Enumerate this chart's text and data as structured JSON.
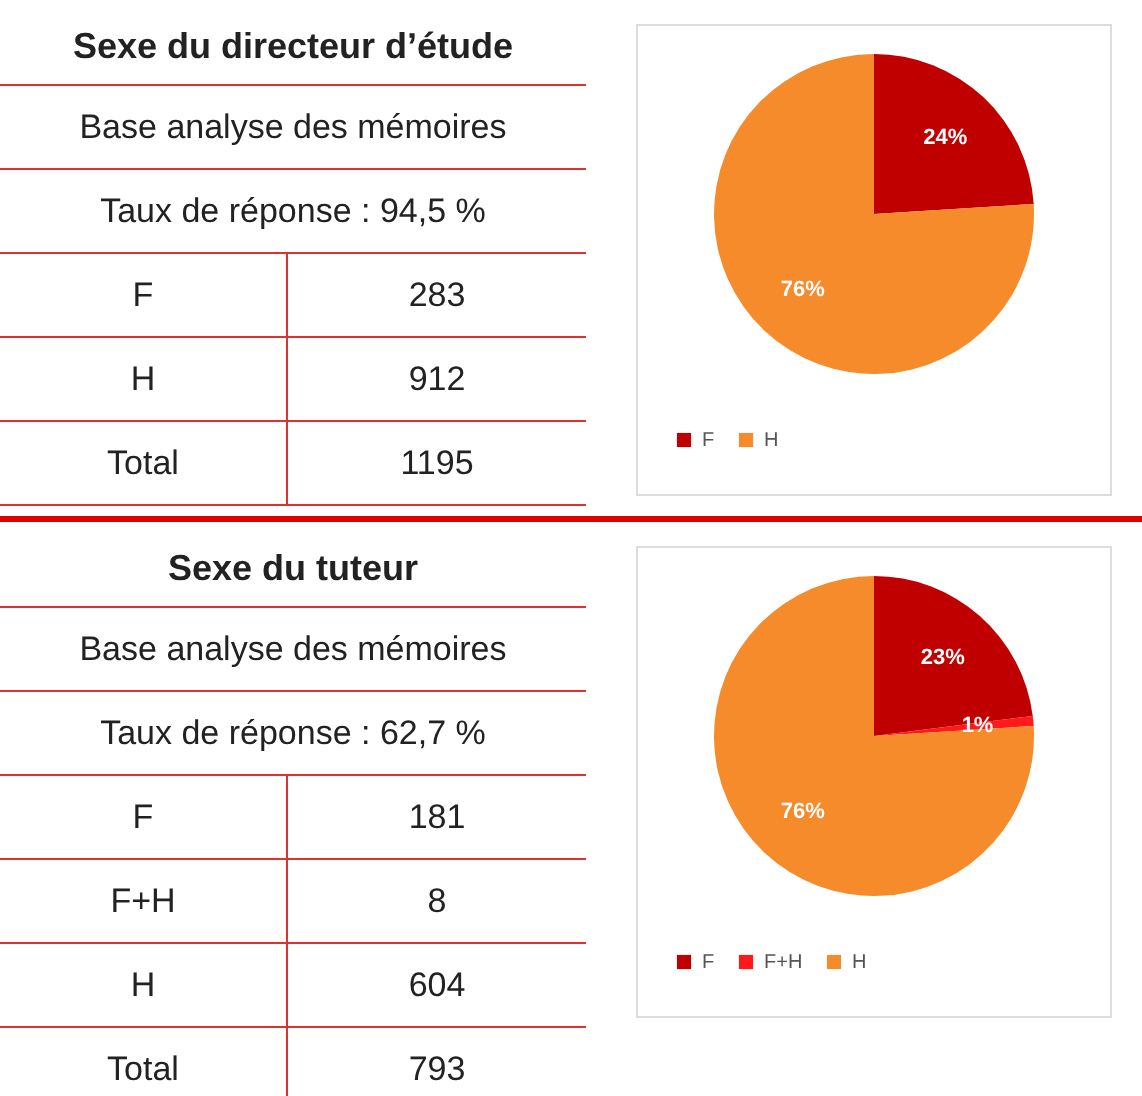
{
  "chart_data": [
    {
      "type": "other",
      "title": "Sexe du directeur d’étude",
      "annotations": [
        "Base analyse des mémoires",
        "Taux de réponse : 94,5 %"
      ],
      "categories": [
        "F",
        "H",
        "Total"
      ],
      "values": [
        283,
        912,
        1195
      ],
      "data_labels": true
    },
    {
      "type": "pie",
      "categories": [
        "F",
        "H"
      ],
      "values": [
        24,
        76
      ],
      "colors": [
        "#c00000",
        "#f68b2c"
      ],
      "value_labels": [
        "24%",
        "76%"
      ],
      "legend": "bottom"
    },
    {
      "type": "other",
      "title": "Sexe du tuteur",
      "annotations": [
        "Base analyse des mémoires",
        "Taux de réponse : 62,7 %"
      ],
      "categories": [
        "F",
        "F+H",
        "H",
        "Total"
      ],
      "values": [
        181,
        8,
        604,
        793
      ],
      "data_labels": true
    },
    {
      "type": "pie",
      "categories": [
        "F",
        "F+H",
        "H"
      ],
      "values": [
        23,
        1,
        76
      ],
      "colors": [
        "#c00000",
        "#ff1a1a",
        "#f68b2c"
      ],
      "value_labels": [
        "23%",
        "1%",
        "76%"
      ],
      "legend": "bottom"
    }
  ]
}
